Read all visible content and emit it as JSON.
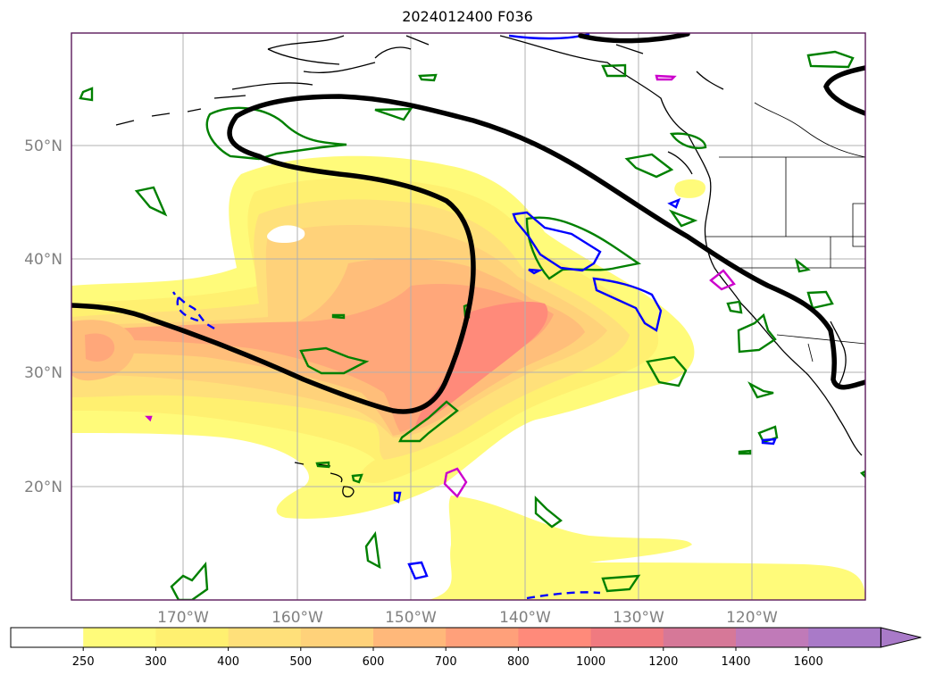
{
  "title": "2024012400 F036",
  "map": {
    "lat_labels": [
      "50°N",
      "40°N",
      "30°N",
      "20°N"
    ],
    "lon_labels": [
      "170°W",
      "160°W",
      "150°W",
      "140°W",
      "130°W",
      "120°W"
    ],
    "grid": true,
    "frame_color": "#5a1a5a"
  },
  "colorbar": {
    "levels": [
      "250",
      "300",
      "400",
      "500",
      "600",
      "700",
      "800",
      "1000",
      "1200",
      "1400",
      "1600"
    ],
    "colors": [
      "#ffffff",
      "#fffb7a",
      "#fff070",
      "#ffe07a",
      "#ffd27a",
      "#ffb87a",
      "#ffa07a",
      "#ff8a7a",
      "#f07a80",
      "#d67898",
      "#c07ab8",
      "#a97ac8"
    ],
    "extend": "max"
  },
  "colors": {
    "ivt_light": "#fffb7a",
    "ivt_mid": "#ffd27a",
    "ivt_orange": "#ffa77a",
    "ivt_red": "#ff8a7a",
    "jet_contour": "#000000",
    "green_contour": "#008000",
    "blue_contour": "#0000ff",
    "magenta_contour": "#cc00cc"
  }
}
